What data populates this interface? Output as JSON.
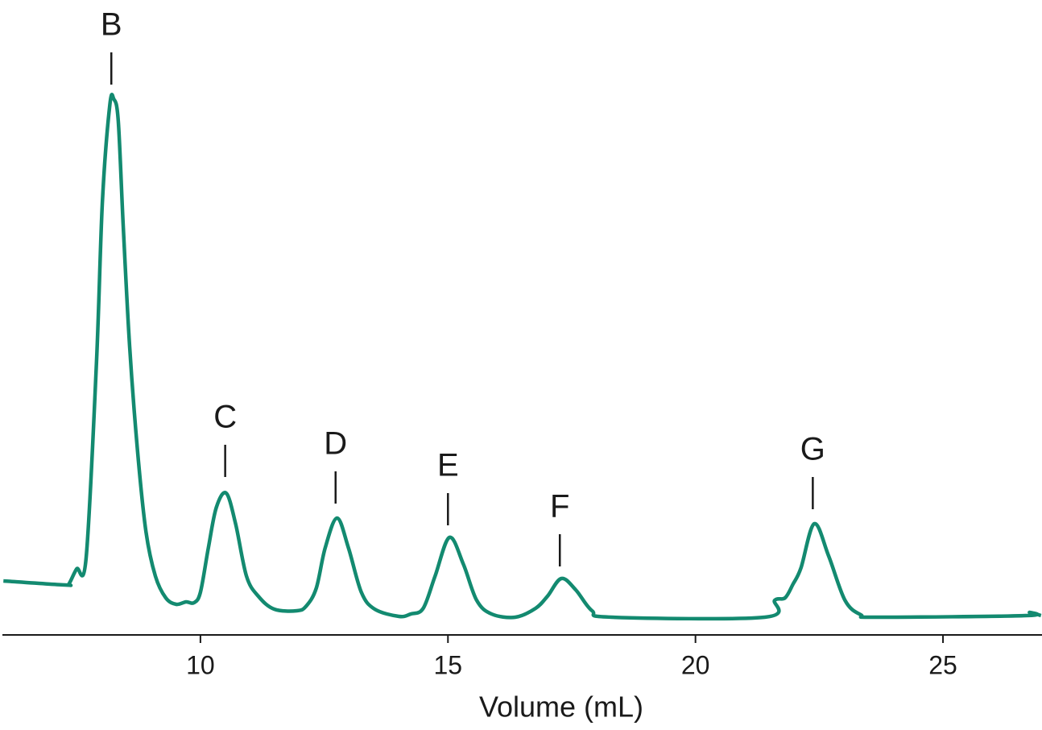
{
  "chart_data": {
    "type": "line",
    "xlabel": "Volume (mL)",
    "xlim": [
      6,
      27
    ],
    "xticks": [
      10,
      15,
      20,
      25
    ],
    "ylim": [
      0,
      700
    ],
    "grid": false,
    "series": [
      {
        "color": "#138a70",
        "x": [
          6.02,
          7.27,
          7.35,
          7.5,
          7.69,
          7.9,
          8.02,
          8.17,
          8.25,
          8.34,
          8.44,
          8.57,
          8.73,
          8.9,
          9.09,
          9.3,
          9.51,
          9.71,
          9.87,
          10.0,
          10.16,
          10.32,
          10.52,
          10.71,
          10.93,
          11.17,
          11.49,
          11.95,
          12.14,
          12.34,
          12.52,
          12.76,
          12.99,
          13.25,
          13.52,
          14.01,
          14.25,
          14.5,
          14.74,
          15.03,
          15.31,
          15.58,
          15.88,
          16.36,
          16.77,
          17.01,
          17.29,
          17.58,
          17.91,
          18.31,
          21.4,
          21.6,
          21.81,
          21.97,
          22.13,
          22.4,
          22.69,
          23.02,
          23.34,
          23.67,
          26.67,
          26.75,
          26.98
        ],
        "values": [
          67,
          62,
          64,
          82,
          95,
          338,
          538,
          658,
          665,
          638,
          508,
          358,
          228,
          128,
          73,
          46,
          38,
          41,
          40,
          53,
          108,
          158,
          176,
          138,
          73,
          48,
          32,
          30,
          36,
          58,
          108,
          145,
          108,
          53,
          32,
          23,
          26,
          33,
          73,
          121,
          88,
          43,
          26,
          22,
          33,
          48,
          70,
          56,
          30,
          22,
          22,
          43,
          46,
          63,
          83,
          138,
          98,
          43,
          25,
          22,
          24,
          28,
          24
        ]
      }
    ],
    "annotations": [
      {
        "text": "B",
        "x": 8.2,
        "y": 683
      },
      {
        "text": "C",
        "x": 10.5,
        "y": 196
      },
      {
        "text": "D",
        "x": 12.73,
        "y": 163
      },
      {
        "text": "E",
        "x": 15.0,
        "y": 136
      },
      {
        "text": "F",
        "x": 17.26,
        "y": 85
      },
      {
        "text": "G",
        "x": 22.37,
        "y": 156
      }
    ]
  }
}
